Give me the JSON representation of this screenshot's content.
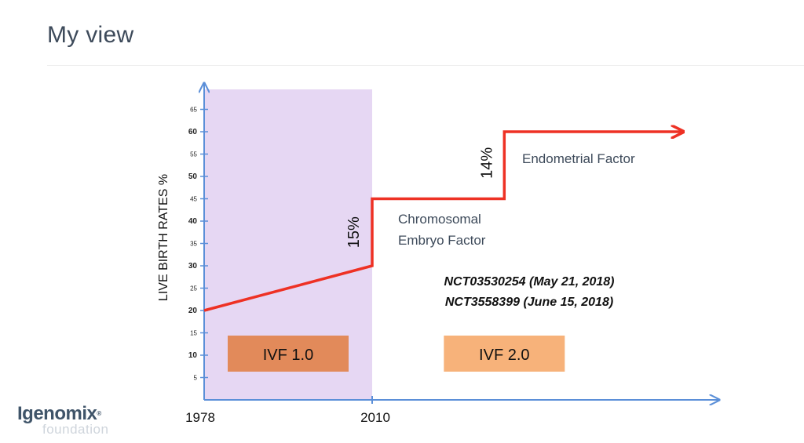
{
  "slide": {
    "title": "My view"
  },
  "logo": {
    "name": "Igenomix",
    "sub": "foundation"
  },
  "chart_data": {
    "type": "line",
    "ylabel": "LIVE BIRTH RATES %",
    "ylim": [
      0,
      67
    ],
    "yticks": [
      5,
      10,
      15,
      20,
      25,
      30,
      35,
      40,
      45,
      50,
      55,
      60,
      65
    ],
    "yticks_bold": [
      10,
      20,
      30,
      40,
      50,
      60
    ],
    "x_ticks": [
      "1978",
      "2010"
    ],
    "series": [
      {
        "color": "#ee3124",
        "points": [
          [
            0,
            20
          ],
          [
            1,
            30
          ],
          [
            1,
            45
          ],
          [
            1.85,
            45
          ],
          [
            1.85,
            60
          ],
          [
            3,
            60
          ]
        ]
      }
    ],
    "shaded_region": {
      "x": [
        0,
        1
      ],
      "color": "#e6d7f3"
    },
    "step_labels": [
      {
        "text": "15%",
        "x": 0.92,
        "y": 37.5
      },
      {
        "text": "14%",
        "x": 1.77,
        "y": 53
      }
    ],
    "annotations": [
      {
        "lines": [
          "Chromosomal",
          "Embryo Factor"
        ]
      },
      {
        "lines": [
          "Endometrial Factor"
        ]
      }
    ],
    "trials": [
      "NCT03530254 (May 21, 2018)",
      "NCT3558399 (June 15, 2018)"
    ],
    "eras": [
      {
        "label": "IVF 1.0",
        "color": "#e28a5a",
        "x": 0.5,
        "y": 10
      },
      {
        "label": "IVF 2.0",
        "color": "#f7b27a",
        "x": 1.85,
        "y": 10
      }
    ]
  }
}
